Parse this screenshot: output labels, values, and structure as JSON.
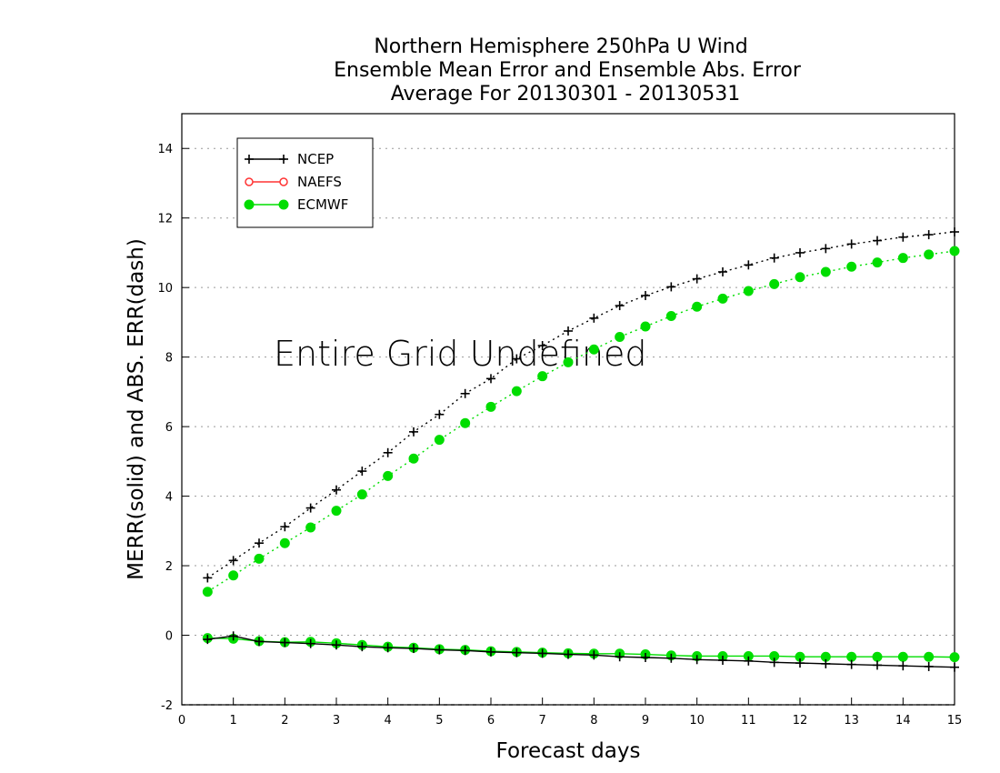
{
  "chart_data": {
    "type": "line",
    "title_lines": [
      "Northern Hemisphere 250hPa U Wind",
      "Ensemble Mean Error and Ensemble Abs. Error",
      "Average For 20130301 - 20130531"
    ],
    "xlabel": "Forecast days",
    "ylabel": "MERR(solid) and ABS. ERR(dash)",
    "xlim": [
      0,
      15
    ],
    "ylim": [
      -2,
      15
    ],
    "x_ticks": [
      "0",
      "1",
      "2",
      "3",
      "4",
      "5",
      "6",
      "7",
      "8",
      "9",
      "10",
      "11",
      "12",
      "13",
      "14",
      "15"
    ],
    "y_ticks": [
      "-2",
      "0",
      "2",
      "4",
      "6",
      "8",
      "10",
      "12",
      "14"
    ],
    "grid": "horizontal dotted",
    "legend_position": "top-left",
    "annotation": "Entire Grid Undefined",
    "x": [
      0.5,
      1,
      1.5,
      2,
      2.5,
      3,
      3.5,
      4,
      4.5,
      5,
      5.5,
      6,
      6.5,
      7,
      7.5,
      8,
      8.5,
      9,
      9.5,
      10,
      10.5,
      11,
      11.5,
      12,
      12.5,
      13,
      13.5,
      14,
      14.5,
      15
    ],
    "series": [
      {
        "name": "NCEP",
        "color": "#000000",
        "marker": "plus",
        "mean_error": [
          -0.12,
          -0.02,
          -0.18,
          -0.21,
          -0.24,
          -0.28,
          -0.33,
          -0.36,
          -0.38,
          -0.42,
          -0.44,
          -0.48,
          -0.5,
          -0.52,
          -0.55,
          -0.57,
          -0.62,
          -0.64,
          -0.66,
          -0.7,
          -0.72,
          -0.74,
          -0.78,
          -0.8,
          -0.82,
          -0.84,
          -0.86,
          -0.88,
          -0.9,
          -0.92
        ],
        "abs_error": [
          1.65,
          2.15,
          2.65,
          3.12,
          3.66,
          4.18,
          4.72,
          5.25,
          5.85,
          6.35,
          6.95,
          7.38,
          7.95,
          8.33,
          8.75,
          9.12,
          9.48,
          9.77,
          10.02,
          10.25,
          10.45,
          10.65,
          10.85,
          11.0,
          11.12,
          11.25,
          11.35,
          11.45,
          11.52,
          11.6
        ]
      },
      {
        "name": "NAEFS",
        "color": "#ff3333",
        "marker": "open-circle",
        "mean_error": [],
        "abs_error": []
      },
      {
        "name": "ECMWF",
        "color": "#00dd00",
        "marker": "filled-circle",
        "mean_error": [
          -0.08,
          -0.1,
          -0.17,
          -0.2,
          -0.19,
          -0.23,
          -0.28,
          -0.33,
          -0.36,
          -0.4,
          -0.42,
          -0.46,
          -0.48,
          -0.5,
          -0.52,
          -0.53,
          -0.53,
          -0.55,
          -0.58,
          -0.6,
          -0.6,
          -0.6,
          -0.6,
          -0.62,
          -0.62,
          -0.62,
          -0.62,
          -0.62,
          -0.62,
          -0.63
        ],
        "abs_error": [
          1.25,
          1.72,
          2.2,
          2.65,
          3.1,
          3.58,
          4.05,
          4.58,
          5.08,
          5.62,
          6.1,
          6.57,
          7.02,
          7.45,
          7.85,
          8.22,
          8.58,
          8.88,
          9.18,
          9.45,
          9.68,
          9.9,
          10.1,
          10.3,
          10.45,
          10.6,
          10.72,
          10.85,
          10.95,
          11.05
        ]
      }
    ]
  }
}
